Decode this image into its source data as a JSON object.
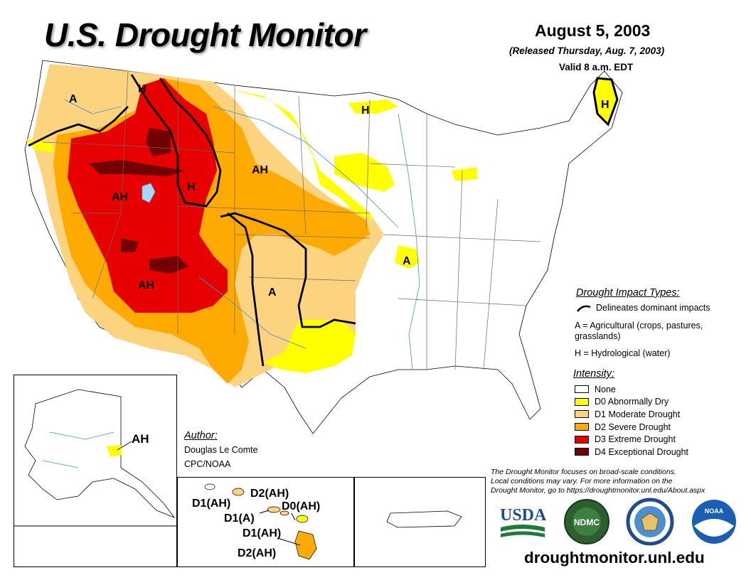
{
  "header": {
    "title": "U.S. Drought Monitor",
    "date": "August 5, 2003",
    "released": "(Released Thursday, Aug. 7, 2003)",
    "valid": "Valid 8 a.m. EDT"
  },
  "map_labels": {
    "wa_a": "A",
    "mt_h": "H",
    "me_h": "H",
    "mn_h": "H",
    "nd_ah": "AH",
    "wy_h": "H",
    "nv_ah": "AH",
    "az_ah": "AH",
    "tx_a": "A",
    "mo_a": "A"
  },
  "impact_types": {
    "heading": "Drought Impact Types:",
    "delineates": "Delineates dominant impacts",
    "agricultural_line1": "A = Agricultural (crops, pastures,",
    "agricultural_line2": "grasslands)",
    "hydrological": "H = Hydrological (water)"
  },
  "intensity": {
    "heading": "Intensity:",
    "items": [
      {
        "label": "None",
        "color": "#ffffff"
      },
      {
        "label": "D0 Abnormally Dry",
        "color": "#ffff00"
      },
      {
        "label": "D1 Moderate Drought",
        "color": "#fcd37f"
      },
      {
        "label": "D2 Severe Drought",
        "color": "#ffaa00"
      },
      {
        "label": "D3 Extreme Drought",
        "color": "#e60000"
      },
      {
        "label": "D4 Exceptional Drought",
        "color": "#730000"
      }
    ]
  },
  "author": {
    "heading": "Author:",
    "name": "Douglas Le Comte",
    "org": "CPC/NOAA"
  },
  "note": {
    "line1": "The Drought Monitor focuses on broad-scale conditions.",
    "line2": "Local conditions may vary. For more information on the",
    "line3": "Drought Monitor, go to https://droughtmonitor.unl.edu/About.aspx"
  },
  "alaska": {
    "label": "AH"
  },
  "hawaii": {
    "labels": [
      "D2(AH)",
      "D1(AH)",
      "D0(AH)",
      "D1(A)",
      "D1(AH)",
      "D2(AH)"
    ]
  },
  "logos": {
    "usda": "USDA",
    "ndmc": "NDMC",
    "noaa": "NOAA"
  },
  "footer": {
    "url": "droughtmonitor.unl.edu"
  }
}
